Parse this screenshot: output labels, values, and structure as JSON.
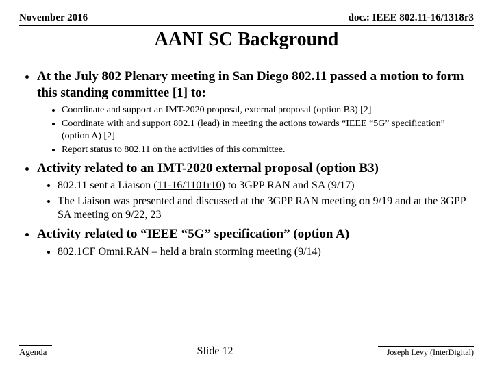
{
  "header": {
    "left": "November 2016",
    "right": "doc.: IEEE 802.11-16/1318r3"
  },
  "title": "AANI SC Background",
  "bullets": [
    {
      "text": "At the July 802 Plenary meeting in San Diego 802.11 passed a motion to form this standing committee [1] to:",
      "subStyle": "small",
      "children": [
        {
          "text": "Coordinate and support an IMT-2020 proposal, external proposal (option B3) [2]"
        },
        {
          "text": "Coordinate with and support 802.1 (lead) in meeting the actions towards “IEEE “5G” specification” (option A) [2]"
        },
        {
          "text": "Report status to 802.11 on the activities of this committee."
        }
      ]
    },
    {
      "text": "Activity related to an IMT-2020 external proposal (option B3)",
      "subStyle": "med",
      "children": [
        {
          "pre": "802.11 sent a Liaison (",
          "link": "11-16/1101r10",
          "post": ") to 3GPP RAN and SA (9/17)"
        },
        {
          "text": "The Liaison was presented and discussed at the 3GPP RAN meeting on 9/19 and at the 3GPP SA meeting on 9/22, 23"
        }
      ]
    },
    {
      "text": "Activity related to “IEEE “5G” specification” (option A)",
      "subStyle": "med",
      "children": [
        {
          "text": "802.1CF Omni.RAN – held a brain storming meeting (9/14)"
        }
      ]
    }
  ],
  "footer": {
    "left": "Agenda",
    "center": "Slide 12",
    "right": "Joseph Levy (InterDigital)"
  }
}
